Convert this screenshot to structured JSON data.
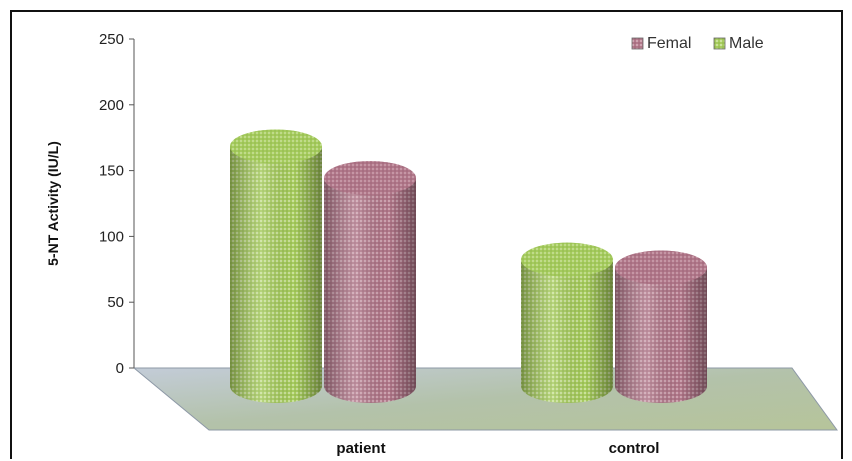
{
  "chart_data": {
    "type": "bar",
    "style": "3d-cylinder",
    "categories": [
      "patient",
      "control"
    ],
    "series": [
      {
        "name": "Male",
        "values": [
          182,
          96
        ],
        "color": "#a3c95a"
      },
      {
        "name": "Femal",
        "values": [
          158,
          90
        ],
        "color": "#b07587"
      }
    ],
    "xlabel": "",
    "ylabel": "5-NT Activity  (IU/L)",
    "ylim": [
      0,
      250
    ],
    "yticks": [
      0,
      50,
      100,
      150,
      200,
      250
    ],
    "legend": {
      "position": "top-right",
      "order": [
        "Femal",
        "Male"
      ]
    },
    "grid": false
  }
}
